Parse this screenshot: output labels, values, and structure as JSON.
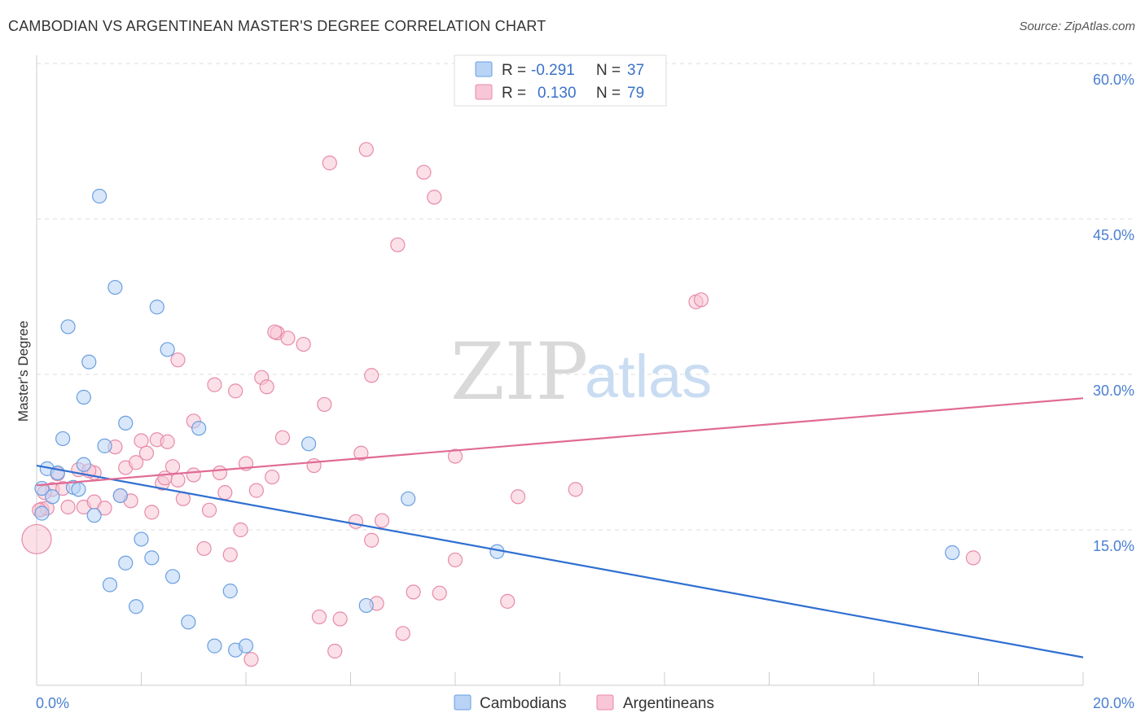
{
  "title": "CAMBODIAN VS ARGENTINEAN MASTER'S DEGREE CORRELATION CHART",
  "source": "Source: ZipAtlas.com",
  "watermark": {
    "zip": "ZIP",
    "atlas": "atlas"
  },
  "colors": {
    "cambodian_fill": "#b8d3f5",
    "cambodian_stroke": "#6a9fe0",
    "cambodian_line": "#2f6fd1",
    "argentinean_fill": "#f8c6d6",
    "argentinean_stroke": "#e88aa9",
    "argentinean_line": "#e06b95",
    "grid": "#dddddd",
    "axis_text": "#4a7fd0"
  },
  "legend": {
    "rows": [
      {
        "r_label": "R =",
        "r_value": "-0.291",
        "n_label": "N =",
        "n_value": "37"
      },
      {
        "r_label": "R =",
        "r_value": "0.130",
        "n_label": "N =",
        "n_value": "79"
      }
    ]
  },
  "chart_data": {
    "type": "scatter",
    "title": "CAMBODIAN VS ARGENTINEAN MASTER'S DEGREE CORRELATION CHART",
    "xlabel": "",
    "ylabel": "Master's Degree",
    "xlim": [
      0,
      20
    ],
    "ylim": [
      0,
      60
    ],
    "x_tick_labels": [
      "0.0%",
      "20.0%"
    ],
    "y_ticks": [
      15,
      30,
      45,
      60
    ],
    "y_tick_labels": [
      "15.0%",
      "30.0%",
      "45.0%",
      "60.0%"
    ],
    "grid": true,
    "legend_position": "top-center",
    "series": [
      {
        "name": "Cambodians",
        "trend": {
          "x": [
            0,
            20
          ],
          "y": [
            21.2,
            2.7
          ]
        },
        "points": [
          [
            0.1,
            19.0
          ],
          [
            0.1,
            16.6
          ],
          [
            0.2,
            20.9
          ],
          [
            0.3,
            18.2
          ],
          [
            0.4,
            20.5
          ],
          [
            0.5,
            23.8
          ],
          [
            0.6,
            34.6
          ],
          [
            0.7,
            19.1
          ],
          [
            0.8,
            18.9
          ],
          [
            0.9,
            21.3
          ],
          [
            0.9,
            27.8
          ],
          [
            1.0,
            31.2
          ],
          [
            1.1,
            16.4
          ],
          [
            1.2,
            47.2
          ],
          [
            1.3,
            23.1
          ],
          [
            1.4,
            9.7
          ],
          [
            1.5,
            38.4
          ],
          [
            1.6,
            18.3
          ],
          [
            1.7,
            11.8
          ],
          [
            1.7,
            25.3
          ],
          [
            1.9,
            7.6
          ],
          [
            2.0,
            14.1
          ],
          [
            2.2,
            12.3
          ],
          [
            2.3,
            36.5
          ],
          [
            2.5,
            32.4
          ],
          [
            2.6,
            10.5
          ],
          [
            2.9,
            6.1
          ],
          [
            3.1,
            24.8
          ],
          [
            3.4,
            3.8
          ],
          [
            3.7,
            9.1
          ],
          [
            3.8,
            3.4
          ],
          [
            4.0,
            3.8
          ],
          [
            5.2,
            23.3
          ],
          [
            6.3,
            7.7
          ],
          [
            7.1,
            18.0
          ],
          [
            8.8,
            12.9
          ],
          [
            17.5,
            12.8
          ]
        ]
      },
      {
        "name": "Argentineans",
        "trend": {
          "x": [
            0,
            20
          ],
          "y": [
            19.3,
            27.7
          ]
        },
        "points": [
          [
            0.0,
            14.1
          ],
          [
            0.1,
            17.0
          ],
          [
            0.2,
            17.1
          ],
          [
            0.3,
            18.9
          ],
          [
            0.4,
            20.4
          ],
          [
            0.5,
            19.0
          ],
          [
            0.6,
            17.2
          ],
          [
            0.8,
            20.8
          ],
          [
            0.9,
            17.2
          ],
          [
            1.1,
            20.5
          ],
          [
            1.1,
            17.7
          ],
          [
            1.3,
            17.1
          ],
          [
            1.5,
            23.0
          ],
          [
            1.6,
            18.3
          ],
          [
            1.7,
            21.0
          ],
          [
            1.8,
            17.8
          ],
          [
            1.9,
            21.5
          ],
          [
            2.0,
            23.6
          ],
          [
            2.1,
            22.4
          ],
          [
            2.2,
            16.7
          ],
          [
            2.3,
            23.7
          ],
          [
            2.4,
            19.5
          ],
          [
            2.5,
            23.5
          ],
          [
            2.6,
            21.1
          ],
          [
            2.7,
            31.4
          ],
          [
            2.7,
            19.8
          ],
          [
            2.8,
            18.0
          ],
          [
            3.0,
            20.3
          ],
          [
            3.0,
            25.5
          ],
          [
            3.2,
            13.2
          ],
          [
            3.3,
            16.9
          ],
          [
            3.4,
            29.0
          ],
          [
            3.5,
            20.5
          ],
          [
            3.6,
            18.6
          ],
          [
            3.7,
            12.6
          ],
          [
            3.8,
            28.4
          ],
          [
            3.9,
            15.0
          ],
          [
            4.0,
            21.4
          ],
          [
            4.1,
            2.5
          ],
          [
            4.2,
            18.8
          ],
          [
            4.3,
            29.7
          ],
          [
            4.4,
            28.8
          ],
          [
            4.5,
            20.1
          ],
          [
            4.6,
            34.0
          ],
          [
            4.7,
            23.9
          ],
          [
            4.8,
            33.5
          ],
          [
            5.1,
            32.9
          ],
          [
            5.3,
            21.2
          ],
          [
            5.4,
            6.6
          ],
          [
            5.5,
            27.1
          ],
          [
            5.6,
            50.4
          ],
          [
            5.7,
            3.3
          ],
          [
            5.8,
            6.4
          ],
          [
            6.1,
            15.8
          ],
          [
            6.2,
            22.4
          ],
          [
            6.3,
            51.7
          ],
          [
            6.4,
            14.0
          ],
          [
            6.4,
            29.9
          ],
          [
            6.5,
            7.9
          ],
          [
            6.6,
            15.9
          ],
          [
            6.9,
            42.5
          ],
          [
            7.0,
            5.0
          ],
          [
            7.2,
            9.0
          ],
          [
            7.4,
            49.5
          ],
          [
            7.6,
            47.1
          ],
          [
            7.7,
            8.9
          ],
          [
            8.0,
            22.1
          ],
          [
            8.0,
            12.1
          ],
          [
            9.0,
            8.1
          ],
          [
            9.2,
            18.2
          ],
          [
            10.3,
            18.9
          ],
          [
            12.6,
            37.0
          ],
          [
            12.7,
            37.2
          ],
          [
            17.9,
            12.3
          ],
          [
            0.05,
            16.9
          ],
          [
            0.15,
            18.6
          ],
          [
            1.0,
            20.7
          ],
          [
            2.45,
            20.0
          ],
          [
            4.55,
            34.1
          ]
        ]
      }
    ]
  },
  "bottom_legend": [
    {
      "label": "Cambodians"
    },
    {
      "label": "Argentineans"
    }
  ]
}
